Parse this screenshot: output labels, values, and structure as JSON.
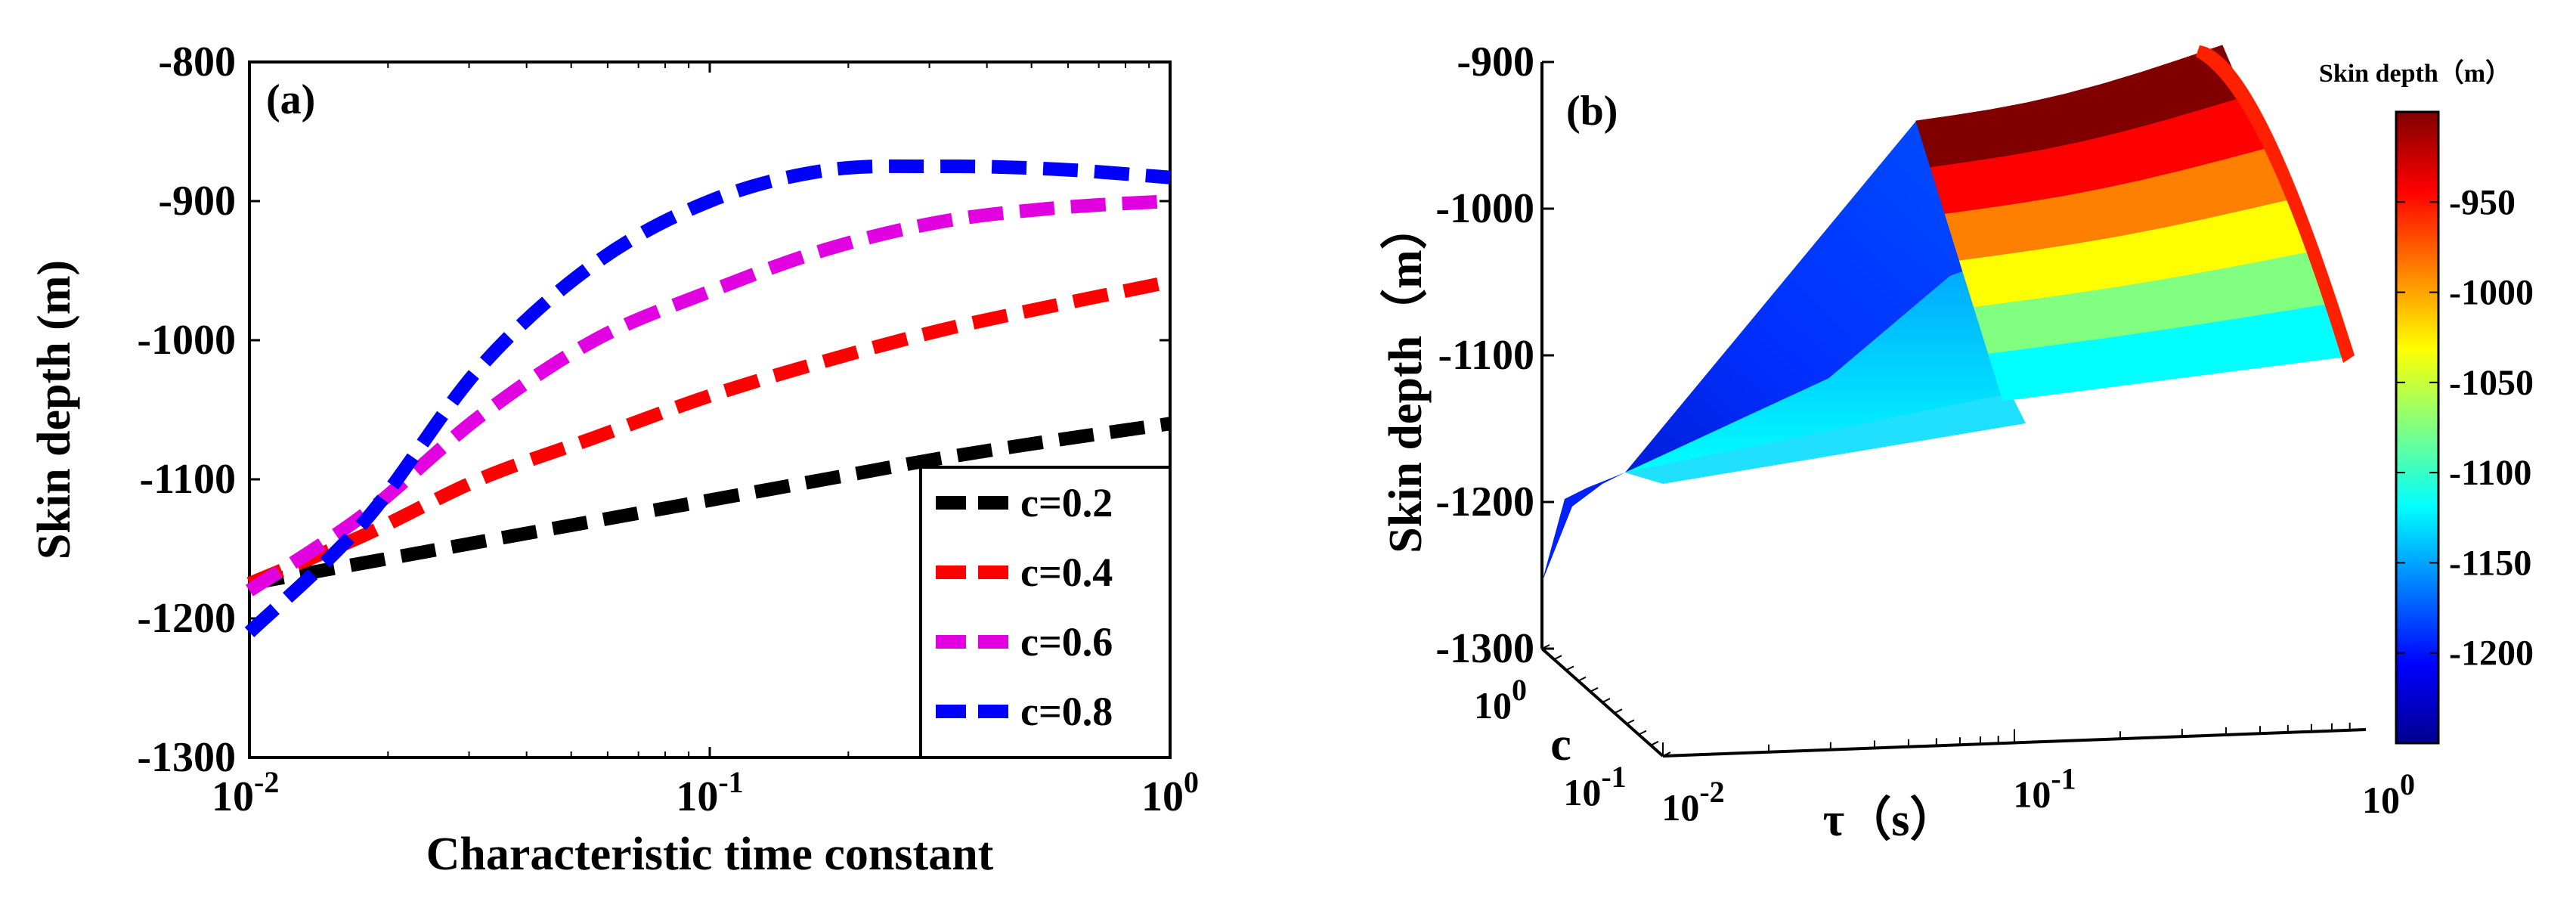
{
  "chart_data": [
    {
      "type": "line",
      "panel_label": "(a)",
      "xscale": "log",
      "xlim": [
        0.01,
        1
      ],
      "ylim": [
        -1300,
        -800
      ],
      "xticks": [
        0.01,
        0.1,
        1
      ],
      "xtick_labels": [
        {
          "base": "10",
          "exp": "-2"
        },
        {
          "base": "10",
          "exp": "-1"
        },
        {
          "base": "10",
          "exp": "0"
        }
      ],
      "yticks": [
        -800,
        -900,
        -1000,
        -1100,
        -1200,
        -1300
      ],
      "ytick_labels": [
        "-800",
        "-900",
        "-1000",
        "-1100",
        "-1200",
        "-1300"
      ],
      "xlabel": "Characteristic time constant",
      "ylabel": "Skin depth (m)",
      "legend_position": "bottom-right",
      "x": [
        0.01,
        0.0178,
        0.0316,
        0.0562,
        0.1,
        0.178,
        0.316,
        0.562,
        1
      ],
      "series": [
        {
          "name": "c=0.2",
          "color": "#000000",
          "values": [
            -1175,
            -1160,
            -1145,
            -1130,
            -1115,
            -1100,
            -1085,
            -1072,
            -1060
          ]
        },
        {
          "name": "c=0.4",
          "color": "#ff0000",
          "values": [
            -1175,
            -1140,
            -1100,
            -1070,
            -1040,
            -1015,
            -993,
            -975,
            -958
          ]
        },
        {
          "name": "c=0.6",
          "color": "#e000e0",
          "values": [
            -1180,
            -1125,
            -1055,
            -1000,
            -965,
            -935,
            -915,
            -905,
            -900
          ]
        },
        {
          "name": "c=0.8",
          "color": "#0000ff",
          "values": [
            -1210,
            -1130,
            -1020,
            -945,
            -900,
            -878,
            -875,
            -877,
            -883
          ]
        }
      ]
    },
    {
      "type": "surface",
      "panel_label": "(b)",
      "zlim": [
        -1300,
        -900
      ],
      "zticks": [
        -900,
        -1000,
        -1100,
        -1200,
        -1300
      ],
      "ztick_labels": [
        "-900",
        "-1000",
        "-1100",
        "-1200",
        "-1300"
      ],
      "tau_tick_labels": [
        {
          "base": "10",
          "exp": "-2"
        },
        {
          "base": "10",
          "exp": "-1"
        },
        {
          "base": "10",
          "exp": "0"
        }
      ],
      "c_tick_labels": [
        {
          "base": "10",
          "exp": "0"
        },
        {
          "base": "10",
          "exp": "-1"
        }
      ],
      "xlabel": "τ（s）",
      "ylabel": "c",
      "zlabel": "Skin depth（m）",
      "colorbar": {
        "title": "Skin depth（m）",
        "range": [
          -1250,
          -900
        ],
        "ticks": [
          -950,
          -1000,
          -1050,
          -1100,
          -1150,
          -1200
        ],
        "tick_labels": [
          "-950",
          "-1000",
          "-1050",
          "-1100",
          "-1150",
          "-1200"
        ],
        "colormap": "jet"
      },
      "colormap_stops": [
        "#00008f",
        "#0000ff",
        "#0080ff",
        "#00ffff",
        "#80ff80",
        "#ffff00",
        "#ff8000",
        "#ff0000",
        "#800000"
      ]
    }
  ]
}
